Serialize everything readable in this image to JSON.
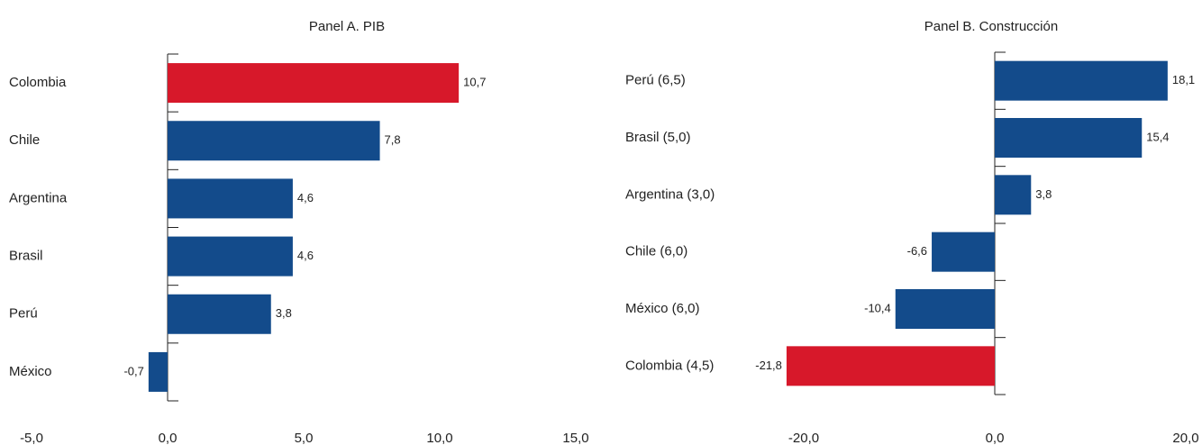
{
  "chart_data": [
    {
      "type": "hbar",
      "title": "Panel A. PIB",
      "categories": [
        "Colombia",
        "Chile",
        "Argentina",
        "Brasil",
        "Perú",
        "México"
      ],
      "values": [
        10.7,
        7.8,
        4.6,
        4.6,
        3.8,
        -0.7
      ],
      "value_labels": [
        "10,7",
        "7,8",
        "4,6",
        "4,6",
        "3,8",
        "-0,7"
      ],
      "colors": [
        "#d7182a",
        "#134b8b",
        "#134b8b",
        "#134b8b",
        "#134b8b",
        "#134b8b"
      ],
      "xlim": [
        -5,
        15
      ],
      "xticks": [
        {
          "value": -5,
          "label": "-5,0"
        },
        {
          "value": 0,
          "label": "0,0"
        },
        {
          "value": 5,
          "label": "5,0"
        },
        {
          "value": 10,
          "label": "10,0"
        },
        {
          "value": 15,
          "label": "15,0"
        }
      ]
    },
    {
      "type": "hbar",
      "title": "Panel B. Construcción",
      "categories": [
        "Perú (6,5)",
        "Brasil (5,0)",
        "Argentina (3,0)",
        "Chile (6,0)",
        "México (6,0)",
        "Colombia (4,5)"
      ],
      "values": [
        18.1,
        15.4,
        3.8,
        -6.6,
        -10.4,
        -21.8
      ],
      "value_labels": [
        "18,1",
        "15,4",
        "3,8",
        "-6,6",
        "-10,4",
        "-21,8"
      ],
      "colors": [
        "#134b8b",
        "#134b8b",
        "#134b8b",
        "#134b8b",
        "#134b8b",
        "#d7182a"
      ],
      "xlim": [
        -25,
        20
      ],
      "xticks": [
        {
          "value": -20,
          "label": "-20,0"
        },
        {
          "value": 0,
          "label": "0,0"
        },
        {
          "value": 20,
          "label": "20,0"
        }
      ]
    }
  ]
}
